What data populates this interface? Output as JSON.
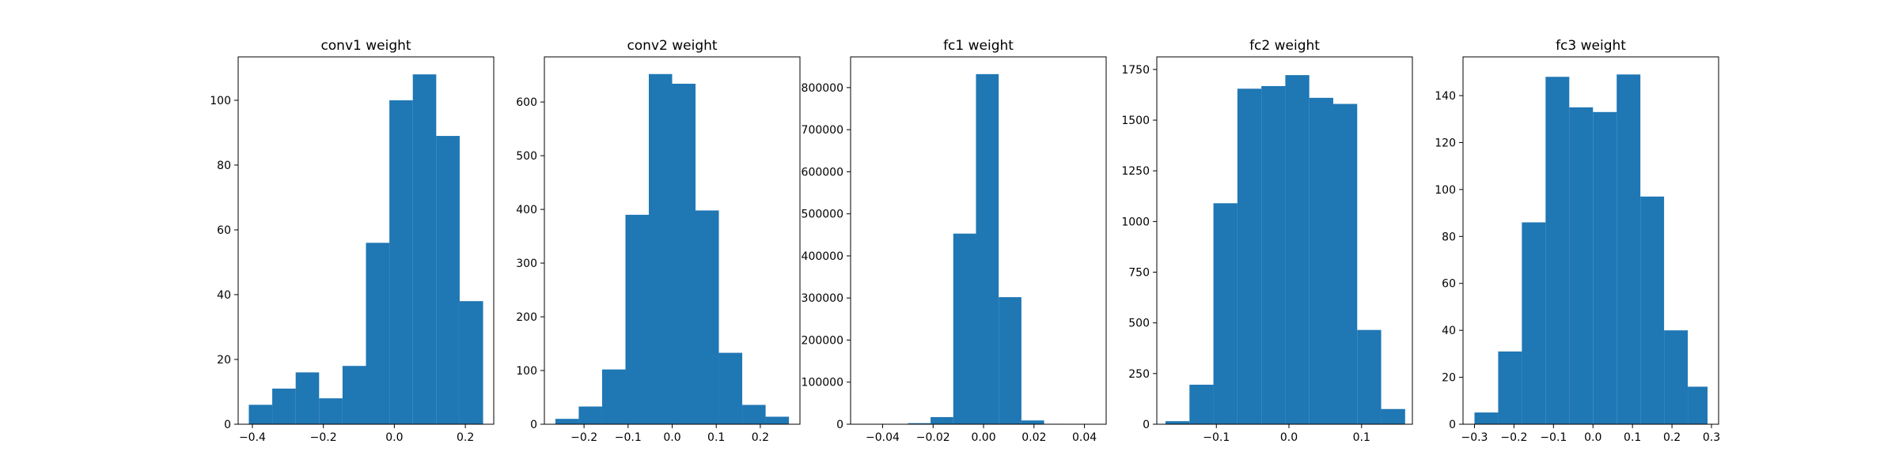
{
  "chart_data": [
    {
      "type": "bar",
      "title": "conv1 weight",
      "xlabel": "",
      "ylabel": "",
      "xlim": [
        -0.44,
        0.28
      ],
      "ylim": [
        0,
        113.4
      ],
      "xticks": [
        -0.4,
        -0.2,
        0.0,
        0.2
      ],
      "xtick_labels": [
        "−0.4",
        "−0.2",
        "0.0",
        "0.2"
      ],
      "yticks": [
        0,
        20,
        40,
        60,
        80,
        100
      ],
      "ytick_labels": [
        "0",
        "20",
        "40",
        "60",
        "80",
        "100"
      ],
      "bin_edges": [
        -0.41,
        -0.344,
        -0.278,
        -0.212,
        -0.146,
        -0.08,
        -0.014,
        0.052,
        0.118,
        0.184,
        0.25
      ],
      "values": [
        6,
        11,
        16,
        8,
        18,
        56,
        100,
        108,
        89,
        38
      ],
      "color": "#1f77b4"
    },
    {
      "type": "bar",
      "title": "conv2 weight",
      "xlabel": "",
      "ylabel": "",
      "xlim": [
        -0.29,
        0.29
      ],
      "ylim": [
        0,
        684
      ],
      "xticks": [
        -0.2,
        -0.1,
        0.0,
        0.1,
        0.2
      ],
      "xtick_labels": [
        "−0.2",
        "−0.1",
        "0.0",
        "0.1",
        "0.2"
      ],
      "yticks": [
        0,
        100,
        200,
        300,
        400,
        500,
        600
      ],
      "ytick_labels": [
        "0",
        "100",
        "200",
        "300",
        "400",
        "500",
        "600"
      ],
      "bin_edges": [
        -0.265,
        -0.212,
        -0.159,
        -0.106,
        -0.053,
        0.0,
        0.053,
        0.106,
        0.159,
        0.212,
        0.265
      ],
      "values": [
        10,
        33,
        102,
        390,
        652,
        634,
        398,
        133,
        36,
        14
      ],
      "color": "#1f77b4"
    },
    {
      "type": "bar",
      "title": "fc1 weight",
      "xlabel": "",
      "ylabel": "",
      "xlim": [
        -0.0527,
        0.0486
      ],
      "ylim": [
        0,
        873000
      ],
      "xticks": [
        -0.04,
        -0.02,
        0.0,
        0.02,
        0.04
      ],
      "xtick_labels": [
        "−0.04",
        "−0.02",
        "0.00",
        "0.02",
        "0.04"
      ],
      "yticks": [
        0,
        100000,
        200000,
        300000,
        400000,
        500000,
        600000,
        700000,
        800000
      ],
      "ytick_labels": [
        "0",
        "100000",
        "200000",
        "300000",
        "400000",
        "500000",
        "600000",
        "700000",
        "800000"
      ],
      "bin_edges": [
        -0.048,
        -0.039,
        -0.03,
        -0.021,
        -0.012,
        -0.003,
        0.006,
        0.015,
        0.024,
        0.033,
        0.042
      ],
      "values": [
        200,
        800,
        2500,
        17000,
        453000,
        832000,
        302000,
        9000,
        1000,
        200
      ],
      "color": "#1f77b4"
    },
    {
      "type": "bar",
      "title": "fc2 weight",
      "xlabel": "",
      "ylabel": "",
      "xlim": [
        -0.182,
        0.17
      ],
      "ylim": [
        0,
        1812
      ],
      "xticks": [
        -0.1,
        0.0,
        0.1
      ],
      "xtick_labels": [
        "−0.1",
        "0.0",
        "0.1"
      ],
      "yticks": [
        0,
        250,
        500,
        750,
        1000,
        1250,
        1500,
        1750
      ],
      "ytick_labels": [
        "0",
        "250",
        "500",
        "750",
        "1000",
        "1250",
        "1500",
        "1750"
      ],
      "bin_edges": [
        -0.17,
        -0.137,
        -0.104,
        -0.071,
        -0.038,
        -0.005,
        0.028,
        0.061,
        0.094,
        0.127,
        0.16
      ],
      "values": [
        15,
        195,
        1090,
        1655,
        1668,
        1722,
        1610,
        1580,
        465,
        75
      ],
      "color": "#1f77b4"
    },
    {
      "type": "bar",
      "title": "fc3 weight",
      "xlabel": "",
      "ylabel": "",
      "xlim": [
        -0.329,
        0.318
      ],
      "ylim": [
        0,
        156.5
      ],
      "xticks": [
        -0.3,
        -0.2,
        -0.1,
        0.0,
        0.1,
        0.2,
        0.3
      ],
      "xtick_labels": [
        "−0.3",
        "−0.2",
        "−0.1",
        "0.0",
        "0.1",
        "0.2",
        "0.3"
      ],
      "yticks": [
        0,
        20,
        40,
        60,
        80,
        100,
        120,
        140
      ],
      "ytick_labels": [
        "0",
        "20",
        "40",
        "60",
        "80",
        "100",
        "120",
        "140"
      ],
      "bin_edges": [
        -0.3,
        -0.24,
        -0.18,
        -0.12,
        -0.06,
        0.0,
        0.06,
        0.12,
        0.18,
        0.24,
        0.29
      ],
      "values": [
        5,
        31,
        86,
        148,
        135,
        133,
        149,
        97,
        40,
        16
      ],
      "color": "#1f77b4"
    }
  ]
}
